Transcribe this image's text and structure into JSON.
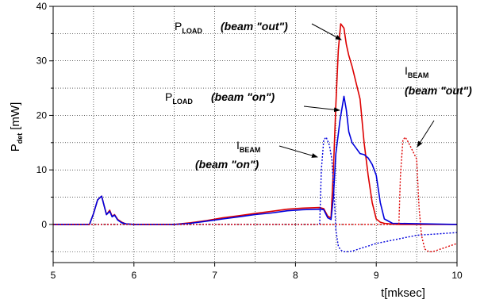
{
  "chart_data": {
    "type": "line",
    "xlabel": "t[mksec]",
    "ylabel": {
      "main": "P",
      "sub": "det",
      "unit": "[mW]"
    },
    "xlim": [
      5,
      10
    ],
    "ylim": [
      -7,
      40
    ],
    "x_ticks": [
      5,
      6,
      7,
      8,
      9,
      10
    ],
    "y_ticks": [
      0,
      10,
      20,
      30,
      40
    ],
    "grid": true,
    "series": [
      {
        "color": "#dd0000",
        "style": "solid",
        "x": [
          5.0,
          5.45,
          5.5,
          5.55,
          5.6,
          5.63,
          5.66,
          5.7,
          5.73,
          5.76,
          5.8,
          5.85,
          5.9,
          6.0,
          6.5,
          6.7,
          6.9,
          7.1,
          7.3,
          7.5,
          7.7,
          7.9,
          8.1,
          8.3,
          8.35,
          8.4,
          8.44,
          8.47,
          8.5,
          8.53,
          8.56,
          8.6,
          8.63,
          8.66,
          8.7,
          8.8,
          8.85,
          8.9,
          8.95,
          9.0,
          9.05,
          9.1,
          9.2,
          9.3,
          9.5,
          10.0
        ],
        "y": [
          0,
          0,
          2,
          4.5,
          5.2,
          3.5,
          1.8,
          2.6,
          1.5,
          1.8,
          0.9,
          0.4,
          0.1,
          0,
          0,
          0.3,
          0.7,
          1.2,
          1.6,
          2.0,
          2.4,
          2.8,
          3.0,
          3.1,
          2.9,
          1.5,
          1.2,
          10,
          22,
          32,
          36.8,
          36,
          33,
          31,
          29,
          23,
          15,
          9,
          4,
          1,
          0.4,
          0.2,
          0.05,
          0,
          0,
          0
        ]
      },
      {
        "color": "#0000dd",
        "style": "solid",
        "x": [
          5.0,
          5.45,
          5.5,
          5.55,
          5.6,
          5.63,
          5.66,
          5.7,
          5.73,
          5.76,
          5.8,
          5.85,
          5.9,
          6.0,
          6.5,
          6.7,
          6.9,
          7.1,
          7.3,
          7.5,
          7.7,
          7.9,
          8.1,
          8.3,
          8.35,
          8.4,
          8.44,
          8.47,
          8.5,
          8.55,
          8.6,
          8.63,
          8.66,
          8.7,
          8.75,
          8.8,
          8.85,
          8.9,
          8.95,
          9.0,
          9.05,
          9.1,
          9.2,
          10.0
        ],
        "y": [
          0,
          0,
          2,
          4.5,
          5.2,
          3.5,
          1.8,
          2.4,
          1.4,
          1.7,
          0.8,
          0.3,
          0.1,
          0,
          0,
          0.2,
          0.6,
          1.0,
          1.4,
          1.8,
          2.1,
          2.5,
          2.7,
          2.8,
          2.7,
          1.2,
          0.9,
          5,
          13,
          19,
          23.5,
          21,
          17,
          15,
          14,
          13,
          12.8,
          12.2,
          11,
          9,
          4,
          1,
          0.2,
          0
        ]
      },
      {
        "color": "#0000dd",
        "style": "dotted",
        "x": [
          5.0,
          8.3,
          8.32,
          8.35,
          8.38,
          8.42,
          8.45,
          8.48,
          8.5,
          8.53,
          8.56,
          8.6,
          8.65,
          8.7,
          9.0,
          9.5,
          10.0
        ],
        "y": [
          0,
          0,
          10,
          15.5,
          16,
          14.5,
          12,
          5,
          -1,
          -4,
          -4.7,
          -5,
          -5,
          -4.9,
          -3.5,
          -2,
          -1.5
        ]
      },
      {
        "color": "#dd0000",
        "style": "dotted",
        "x": [
          5.0,
          9.28,
          9.3,
          9.33,
          9.36,
          9.4,
          9.45,
          9.5,
          9.53,
          9.56,
          9.6,
          9.65,
          9.7,
          9.8,
          10.0
        ],
        "y": [
          0,
          0,
          9,
          15.5,
          16,
          15,
          13.5,
          12,
          3,
          -2,
          -4.5,
          -5,
          -5,
          -4.5,
          -3.5
        ]
      }
    ],
    "annotations": [
      {
        "main": "P",
        "sub": "LOAD",
        "text": "(beam \"out\")"
      },
      {
        "main": "P",
        "sub": "LOAD",
        "text": "(beam \"on\")"
      },
      {
        "main": "I",
        "sub": "BEAM",
        "text": "(beam \"on\")"
      },
      {
        "main": "I",
        "sub": "BEAM",
        "text": "(beam \"out\")"
      }
    ]
  }
}
